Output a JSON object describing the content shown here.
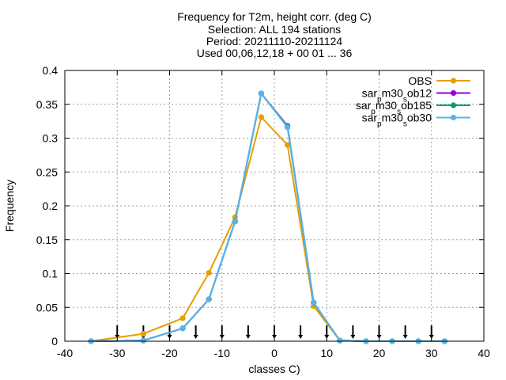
{
  "chart_data": {
    "type": "line",
    "title_lines": [
      "Frequency  for T2m, height corr. (deg C)",
      "Selection: ALL    194 stations",
      "Period: 20211110-20211124",
      "Used 00,06,12,18 + 00 01 ... 36"
    ],
    "xlabel": "classes C)",
    "ylabel": "Frequency",
    "xlim": [
      -40,
      40
    ],
    "ylim": [
      0,
      0.4
    ],
    "xticks": [
      -40,
      -30,
      -20,
      -10,
      0,
      10,
      20,
      30,
      40
    ],
    "xtick_labels": [
      "-40",
      "-30",
      "-20",
      "-10",
      "0",
      "10",
      "20",
      "30",
      "40"
    ],
    "yticks": [
      0,
      0.05,
      0.1,
      0.15,
      0.2,
      0.25,
      0.3,
      0.35,
      0.4
    ],
    "ytick_labels": [
      "0",
      "0.05",
      "0.1",
      "0.15",
      "0.2",
      "0.25",
      "0.3",
      "0.35",
      "0.4"
    ],
    "grid": true,
    "legend_position": "top-right",
    "class_markers": [
      -30,
      -25,
      -20,
      -15,
      -10,
      -5,
      0,
      5,
      10,
      15,
      20,
      25,
      30
    ],
    "x": [
      -35,
      -25,
      -17.5,
      -12.5,
      -7.5,
      -2.5,
      2.5,
      7.5,
      12.5,
      17.5,
      22.5,
      27.5,
      32.5
    ],
    "series": [
      {
        "name": "OBS",
        "name_parts": [
          "OBS"
        ],
        "color": "#e69f00",
        "marker": "circle",
        "values": [
          0.0,
          0.011,
          0.034,
          0.101,
          0.183,
          0.331,
          0.29,
          0.052,
          0.001,
          0.0,
          0.0,
          0.0,
          0.0
        ]
      },
      {
        "name": "sar_p m30_s ob12",
        "name_parts": [
          "sar",
          "p",
          "m30",
          "s",
          "ob12"
        ],
        "color": "#9400d3",
        "marker": "circle",
        "values": [
          0.0,
          0.001,
          0.019,
          0.062,
          0.177,
          0.366,
          0.318,
          0.057,
          0.001,
          0.0,
          0.0,
          0.0,
          0.0
        ]
      },
      {
        "name": "sar_p m30_s ob185",
        "name_parts": [
          "sar",
          "p",
          "m30",
          "s",
          "ob185"
        ],
        "color": "#009e73",
        "marker": "circle",
        "values": [
          0.0,
          0.001,
          0.019,
          0.062,
          0.177,
          0.366,
          0.317,
          0.057,
          0.001,
          0.0,
          0.0,
          0.0,
          0.0
        ]
      },
      {
        "name": "sar_p m30_s ob30",
        "name_parts": [
          "sar",
          "p",
          "m30",
          "s",
          "ob30"
        ],
        "color": "#56b4e9",
        "marker": "circle",
        "values": [
          0.0,
          0.001,
          0.019,
          0.062,
          0.177,
          0.366,
          0.316,
          0.057,
          0.001,
          0.0,
          0.0,
          0.0,
          0.0
        ]
      }
    ]
  }
}
